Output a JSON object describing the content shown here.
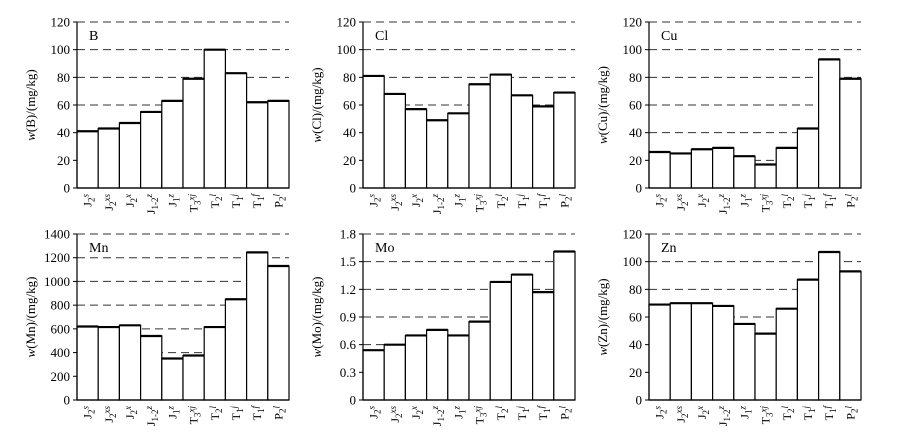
{
  "chart_data": [
    {
      "type": "bar",
      "panel_label": "B",
      "ylabel": "w(B)/(mg/kg)",
      "ylabel_parts": [
        "w",
        "(B)/(mg/kg)"
      ],
      "ylim": [
        0,
        120
      ],
      "yticks": [
        0,
        20,
        40,
        60,
        80,
        100,
        120
      ],
      "grid": "horizontal dashed",
      "categories": [
        {
          "main": "J",
          "sub": "2",
          "sup": "s"
        },
        {
          "main": "J",
          "sub": "2",
          "sup": "xs"
        },
        {
          "main": "J",
          "sub": "2",
          "sup": "x"
        },
        {
          "main": "J",
          "sub": "1-2",
          "sup": "z"
        },
        {
          "main": "J",
          "sub": "1",
          "sup": "z"
        },
        {
          "main": "T",
          "sub": "3",
          "sup": "xj"
        },
        {
          "main": "T",
          "sub": "2",
          "sup": "l"
        },
        {
          "main": "T",
          "sub": "1",
          "sup": "j"
        },
        {
          "main": "T",
          "sub": "1",
          "sup": "f"
        },
        {
          "main": "P",
          "sub": "2",
          "sup": "l"
        }
      ],
      "values": [
        41,
        43,
        47,
        55,
        63,
        79,
        100,
        83,
        62,
        63
      ]
    },
    {
      "type": "bar",
      "panel_label": "Cl",
      "ylabel": "w(Cl)/(mg/kg)",
      "ylabel_parts": [
        "w",
        "(Cl)/(mg/kg)"
      ],
      "ylim": [
        0,
        120
      ],
      "yticks": [
        0,
        20,
        40,
        60,
        80,
        100,
        120
      ],
      "grid": "horizontal dashed",
      "categories": [
        {
          "main": "J",
          "sub": "2",
          "sup": "s"
        },
        {
          "main": "J",
          "sub": "2",
          "sup": "xs"
        },
        {
          "main": "J",
          "sub": "2",
          "sup": "x"
        },
        {
          "main": "J",
          "sub": "1-2",
          "sup": "z"
        },
        {
          "main": "J",
          "sub": "1",
          "sup": "z"
        },
        {
          "main": "T",
          "sub": "3",
          "sup": "xj"
        },
        {
          "main": "T",
          "sub": "2",
          "sup": "l"
        },
        {
          "main": "T",
          "sub": "1",
          "sup": "j"
        },
        {
          "main": "T",
          "sub": "1",
          "sup": "f"
        },
        {
          "main": "P",
          "sub": "2",
          "sup": "l"
        }
      ],
      "values": [
        81,
        68,
        57,
        49,
        54,
        75,
        82,
        67,
        59,
        69
      ]
    },
    {
      "type": "bar",
      "panel_label": "Cu",
      "ylabel": "w(Cu)/(mg/kg)",
      "ylabel_parts": [
        "w",
        "(Cu)/(mg/kg)"
      ],
      "ylim": [
        0,
        120
      ],
      "yticks": [
        0,
        20,
        40,
        60,
        80,
        100,
        120
      ],
      "grid": "horizontal dashed",
      "categories": [
        {
          "main": "J",
          "sub": "2",
          "sup": "s"
        },
        {
          "main": "J",
          "sub": "2",
          "sup": "xs"
        },
        {
          "main": "J",
          "sub": "2",
          "sup": "x"
        },
        {
          "main": "J",
          "sub": "1-2",
          "sup": "z"
        },
        {
          "main": "J",
          "sub": "1",
          "sup": "z"
        },
        {
          "main": "T",
          "sub": "3",
          "sup": "xj"
        },
        {
          "main": "T",
          "sub": "2",
          "sup": "l"
        },
        {
          "main": "T",
          "sub": "1",
          "sup": "j"
        },
        {
          "main": "T",
          "sub": "1",
          "sup": "f"
        },
        {
          "main": "P",
          "sub": "2",
          "sup": "l"
        }
      ],
      "values": [
        26,
        25,
        28,
        29,
        23,
        17,
        29,
        43,
        93,
        79
      ]
    },
    {
      "type": "bar",
      "panel_label": "Mn",
      "ylabel": "w(Mn)/(mg/kg)",
      "ylabel_parts": [
        "w",
        "(Mn)/(mg/kg)"
      ],
      "ylim": [
        0,
        1400
      ],
      "yticks": [
        0,
        200,
        400,
        600,
        800,
        1000,
        1200,
        1400
      ],
      "grid": "horizontal dashed",
      "categories": [
        {
          "main": "J",
          "sub": "2",
          "sup": "s"
        },
        {
          "main": "J",
          "sub": "2",
          "sup": "xs"
        },
        {
          "main": "J",
          "sub": "2",
          "sup": "x"
        },
        {
          "main": "J",
          "sub": "1-2",
          "sup": "z"
        },
        {
          "main": "J",
          "sub": "1",
          "sup": "z"
        },
        {
          "main": "T",
          "sub": "3",
          "sup": "xj"
        },
        {
          "main": "T",
          "sub": "2",
          "sup": "l"
        },
        {
          "main": "T",
          "sub": "1",
          "sup": "j"
        },
        {
          "main": "T",
          "sub": "1",
          "sup": "f"
        },
        {
          "main": "P",
          "sub": "2",
          "sup": "l"
        }
      ],
      "values": [
        620,
        615,
        630,
        540,
        350,
        375,
        615,
        850,
        1245,
        1130
      ]
    },
    {
      "type": "bar",
      "panel_label": "Mo",
      "ylabel": "w(Mo)/(mg/kg)",
      "ylabel_parts": [
        "w",
        "(Mo)/(mg/kg)"
      ],
      "ylim": [
        0,
        1.8
      ],
      "yticks": [
        0,
        0.3,
        0.6,
        0.9,
        1.2,
        1.5,
        1.8
      ],
      "ytick_labels": [
        "0",
        "0.3",
        "0.6",
        "0.9",
        "1.2",
        "1.5",
        "1.8"
      ],
      "grid": "horizontal dashed",
      "categories": [
        {
          "main": "J",
          "sub": "2",
          "sup": "s"
        },
        {
          "main": "J",
          "sub": "2",
          "sup": "xs"
        },
        {
          "main": "J",
          "sub": "2",
          "sup": "x"
        },
        {
          "main": "J",
          "sub": "1-2",
          "sup": "z"
        },
        {
          "main": "J",
          "sub": "1",
          "sup": "z"
        },
        {
          "main": "T",
          "sub": "3",
          "sup": "xj"
        },
        {
          "main": "T",
          "sub": "2",
          "sup": "l"
        },
        {
          "main": "T",
          "sub": "1",
          "sup": "j"
        },
        {
          "main": "T",
          "sub": "1",
          "sup": "f"
        },
        {
          "main": "P",
          "sub": "2",
          "sup": "l"
        }
      ],
      "values": [
        0.54,
        0.6,
        0.7,
        0.76,
        0.7,
        0.85,
        1.28,
        1.36,
        1.17,
        1.61
      ]
    },
    {
      "type": "bar",
      "panel_label": "Zn",
      "ylabel": "w(Zn)/(mg/kg)",
      "ylabel_parts": [
        "w",
        "(Zn)/(mg/kg)"
      ],
      "ylim": [
        0,
        120
      ],
      "yticks": [
        0,
        20,
        40,
        60,
        80,
        100,
        120
      ],
      "grid": "horizontal dashed",
      "categories": [
        {
          "main": "J",
          "sub": "2",
          "sup": "s"
        },
        {
          "main": "J",
          "sub": "2",
          "sup": "xs"
        },
        {
          "main": "J",
          "sub": "2",
          "sup": "x"
        },
        {
          "main": "J",
          "sub": "1-2",
          "sup": "z"
        },
        {
          "main": "J",
          "sub": "1",
          "sup": "z"
        },
        {
          "main": "T",
          "sub": "3",
          "sup": "xj"
        },
        {
          "main": "T",
          "sub": "2",
          "sup": "l"
        },
        {
          "main": "T",
          "sub": "1",
          "sup": "j"
        },
        {
          "main": "T",
          "sub": "1",
          "sup": "f"
        },
        {
          "main": "P",
          "sub": "2",
          "sup": "l"
        }
      ],
      "values": [
        69,
        70,
        70,
        68,
        55,
        48,
        66,
        87,
        107,
        93
      ]
    }
  ]
}
